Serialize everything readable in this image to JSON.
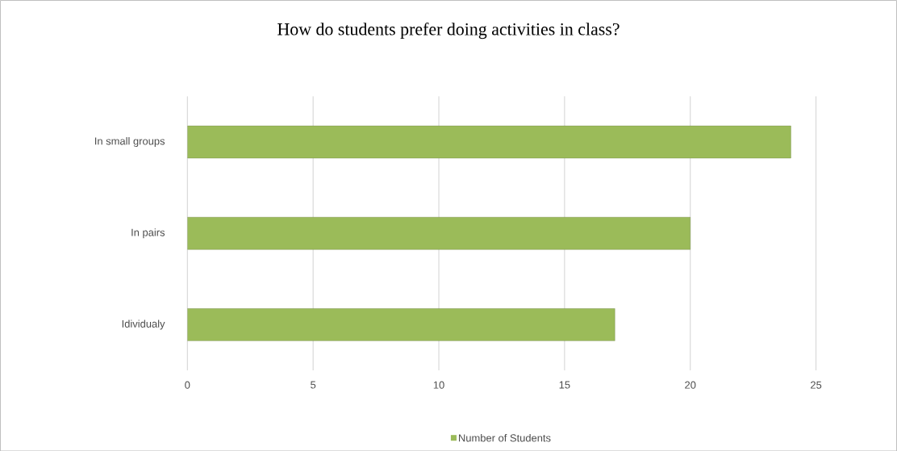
{
  "chart_data": {
    "type": "bar",
    "orientation": "horizontal",
    "title": "How do students prefer doing activities in class?",
    "categories": [
      "In small groups",
      "In pairs",
      "Idividualy"
    ],
    "series": [
      {
        "name": "Number of Students",
        "color": "#9bbb59",
        "values": [
          24,
          20,
          17
        ]
      }
    ],
    "xlim": [
      0,
      25
    ],
    "xticks": [
      0,
      5,
      10,
      15,
      20,
      25
    ],
    "grid": "x",
    "legend": "bottom"
  }
}
